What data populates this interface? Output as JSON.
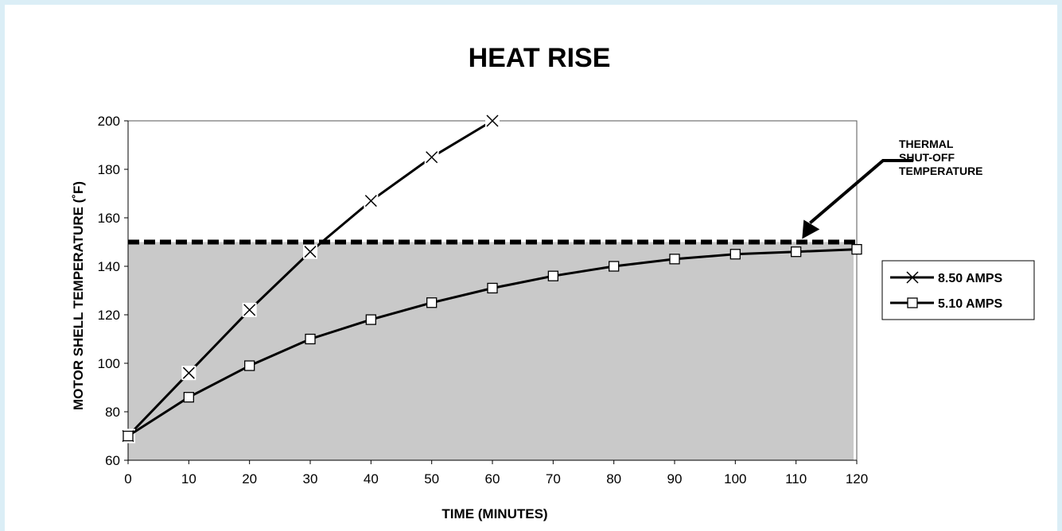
{
  "chart_data": {
    "type": "line",
    "title": "HEAT RISE",
    "xlabel": "TIME (MINUTES)",
    "ylabel": "MOTOR SHELL TEMPERATURE (˚F)",
    "xlim": [
      0,
      120
    ],
    "ylim": [
      60,
      200
    ],
    "x_ticks": [
      0,
      10,
      20,
      30,
      40,
      50,
      60,
      70,
      80,
      90,
      100,
      110,
      120
    ],
    "y_ticks": [
      60,
      80,
      100,
      120,
      140,
      160,
      180,
      200
    ],
    "x_tick_labels": [
      "0",
      "10",
      "20",
      "30",
      "40",
      "50",
      "60",
      "70",
      "80",
      "90",
      "100",
      "110",
      "120"
    ],
    "y_tick_labels": [
      "60",
      "80",
      "100",
      "120",
      "140",
      "160",
      "180",
      "200"
    ],
    "grid": false,
    "legend_position": "right",
    "threshold": {
      "value": 150,
      "label_lines": [
        "THERMAL",
        "SHUT-OFF",
        "TEMPERATURE"
      ],
      "shaded_below": true
    },
    "series": [
      {
        "name": "8.50 AMPS",
        "marker": "x",
        "x": [
          0,
          10,
          20,
          30,
          40,
          50,
          60
        ],
        "y": [
          70,
          96,
          122,
          146,
          167,
          185,
          200
        ]
      },
      {
        "name": "5.10 AMPS",
        "marker": "square",
        "x": [
          0,
          10,
          20,
          30,
          40,
          50,
          60,
          70,
          80,
          90,
          100,
          110,
          120
        ],
        "y": [
          70,
          86,
          99,
          110,
          118,
          125,
          131,
          136,
          140,
          143,
          145,
          146,
          147
        ]
      }
    ],
    "colors": {
      "shade": "#c9c9c9",
      "line": "#000000",
      "background": "#ffffff",
      "outer_border": "#dbeef6"
    }
  }
}
